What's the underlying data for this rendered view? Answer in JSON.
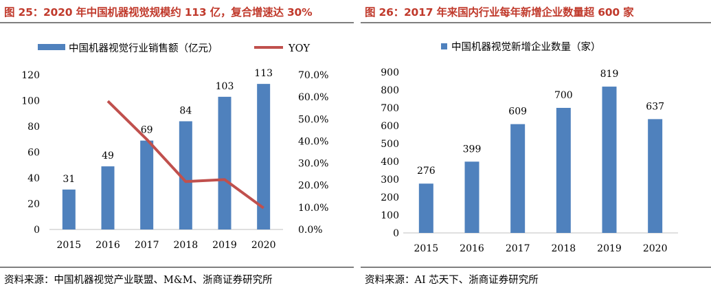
{
  "left": {
    "title": "图 25：2020 年中国机器视觉规模约 113 亿，复合增速达 30%",
    "source": "资料来源：中国机器视觉产业联盟、M&M、浙商证券研究所"
  },
  "right": {
    "title": "图 26：2017 年来国内行业每年新增企业数量超 600 家",
    "source": "资料来源：AI 芯天下、浙商证券研究所"
  },
  "colors": {
    "bar": "#4f81bd",
    "line": "#c0504d",
    "title": "#c0392b"
  },
  "chart_data": [
    {
      "type": "bar",
      "categories": [
        "2015",
        "2016",
        "2017",
        "2018",
        "2019",
        "2020"
      ],
      "series": [
        {
          "name": "中国机器视觉行业销售额（亿元）",
          "type": "bar",
          "axis": "left",
          "values": [
            31,
            49,
            69,
            84,
            103,
            113
          ]
        },
        {
          "name": "YOY",
          "type": "line",
          "axis": "right",
          "values": [
            null,
            58.1,
            40.8,
            21.7,
            22.6,
            9.7
          ]
        }
      ],
      "yticks": [
        "0",
        "20",
        "40",
        "60",
        "80",
        "100",
        "120"
      ],
      "ylim": [
        0,
        120
      ],
      "y2ticks": [
        "0.0%",
        "10.0%",
        "20.0%",
        "30.0%",
        "40.0%",
        "50.0%",
        "60.0%",
        "70.0%"
      ],
      "y2lim": [
        0,
        70
      ],
      "legend": "top",
      "grid": false
    },
    {
      "type": "bar",
      "categories": [
        "2015",
        "2016",
        "2017",
        "2018",
        "2019",
        "2020"
      ],
      "series": [
        {
          "name": "中国机器视觉新增企业数量（家）",
          "values": [
            276,
            399,
            609,
            700,
            819,
            637
          ]
        }
      ],
      "yticks": [
        "0",
        "100",
        "200",
        "300",
        "400",
        "500",
        "600",
        "700",
        "800",
        "900"
      ],
      "ylim": [
        0,
        900
      ],
      "legend": "top",
      "grid": false
    }
  ]
}
